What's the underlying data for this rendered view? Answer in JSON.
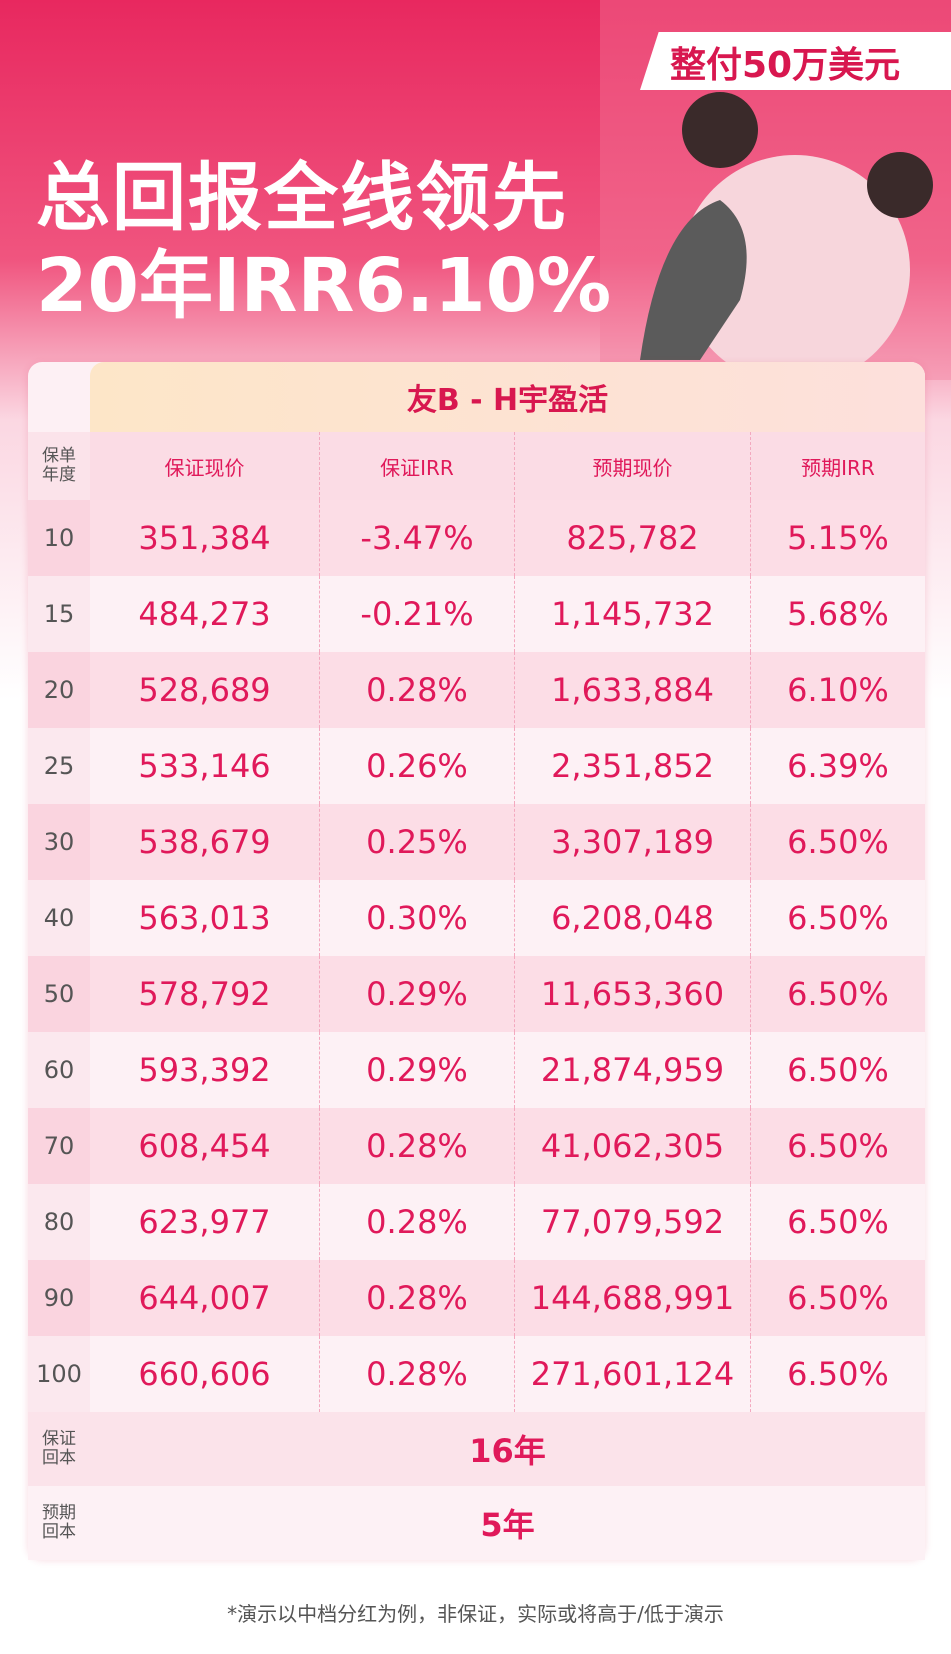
{
  "header": {
    "badge": "整付50万美元",
    "title_line1": "总回报全线领先",
    "title_line2": "20年IRR6.10%"
  },
  "table": {
    "product": "友B - H宇盈活",
    "columns": [
      "保单年度",
      "保证现价",
      "保证IRR",
      "预期现价",
      "预期IRR"
    ],
    "rows": [
      [
        "10",
        "351,384",
        "-3.47%",
        "825,782",
        "5.15%"
      ],
      [
        "15",
        "484,273",
        "-0.21%",
        "1,145,732",
        "5.68%"
      ],
      [
        "20",
        "528,689",
        "0.28%",
        "1,633,884",
        "6.10%"
      ],
      [
        "25",
        "533,146",
        "0.26%",
        "2,351,852",
        "6.39%"
      ],
      [
        "30",
        "538,679",
        "0.25%",
        "3,307,189",
        "6.50%"
      ],
      [
        "40",
        "563,013",
        "0.30%",
        "6,208,048",
        "6.50%"
      ],
      [
        "50",
        "578,792",
        "0.29%",
        "11,653,360",
        "6.50%"
      ],
      [
        "60",
        "593,392",
        "0.29%",
        "21,874,959",
        "6.50%"
      ],
      [
        "70",
        "608,454",
        "0.28%",
        "41,062,305",
        "6.50%"
      ],
      [
        "80",
        "623,977",
        "0.28%",
        "77,079,592",
        "6.50%"
      ],
      [
        "90",
        "644,007",
        "0.28%",
        "144,688,991",
        "6.50%"
      ],
      [
        "100",
        "660,606",
        "0.28%",
        "271,601,124",
        "6.50%"
      ]
    ],
    "summary": [
      [
        "保证回本",
        "16年"
      ],
      [
        "预期回本",
        "5年"
      ]
    ]
  },
  "footnote": "*演示以中档分红为例，非保证，实际或将高于/低于演示"
}
